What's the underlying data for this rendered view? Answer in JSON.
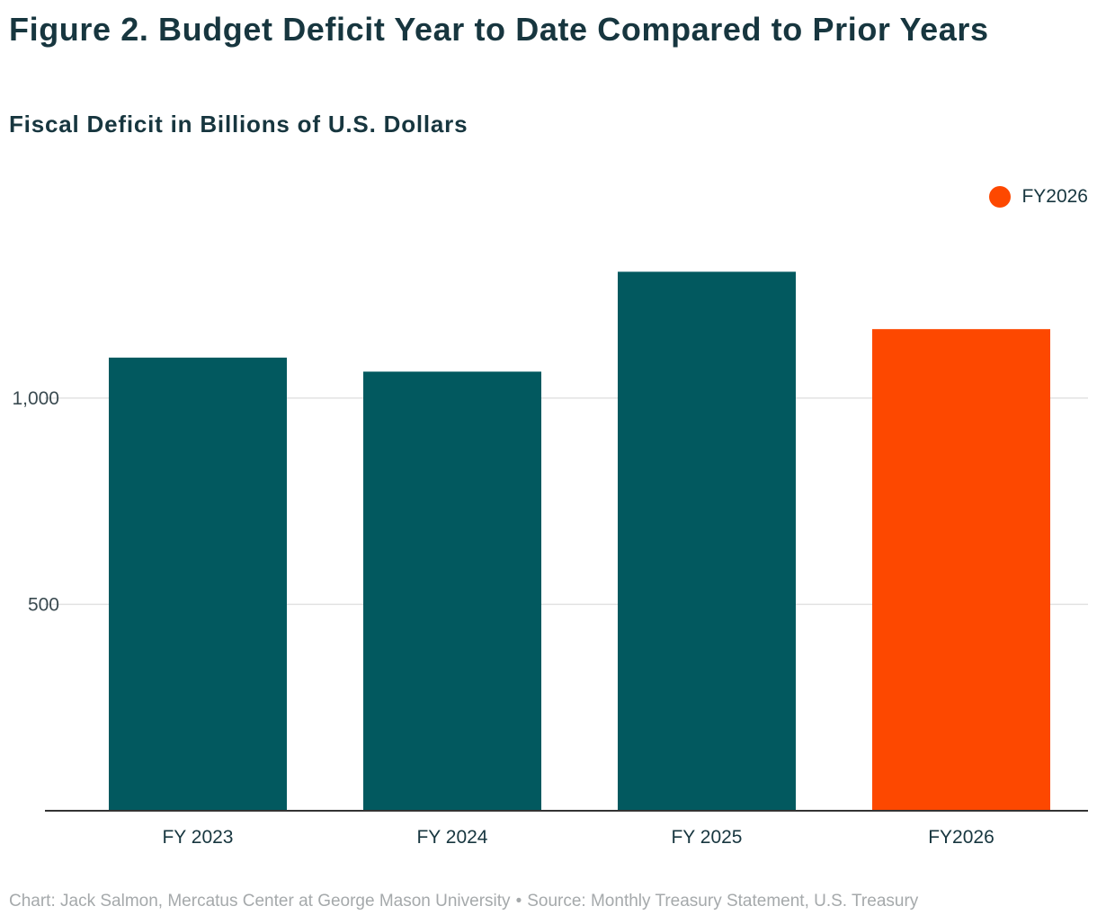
{
  "chart_data": {
    "type": "bar",
    "title": "Figure 2. Budget Deficit Year to Date Compared to Prior Years",
    "subtitle": "Fiscal Deficit in Billions of U.S. Dollars",
    "categories": [
      "FY 2023",
      "FY 2024",
      "FY 2025",
      "FY2026"
    ],
    "values": [
      1098,
      1064,
      1306,
      1167
    ],
    "bar_colors": [
      "#02595f",
      "#02595f",
      "#02595f",
      "#fd4800"
    ],
    "ylim": [
      0,
      1420
    ],
    "yticks": [
      500,
      1000
    ],
    "ytick_labels": [
      "500",
      "1,000"
    ],
    "grid": true,
    "xlabel": "",
    "ylabel": "",
    "legend": {
      "placement": "top-right",
      "entries": [
        {
          "label": "FY2026",
          "color": "#fd4800"
        }
      ]
    }
  },
  "footer": {
    "credit": "Chart: Jack Salmon, Mercatus Center at George Mason University",
    "separator": "•",
    "source": "Source: Monthly Treasury Statement, U.S. Treasury"
  },
  "colors": {
    "text": "#17363f",
    "axis": "#333333",
    "grid": "#e2e2e2",
    "footer": "#a5a9ab"
  }
}
